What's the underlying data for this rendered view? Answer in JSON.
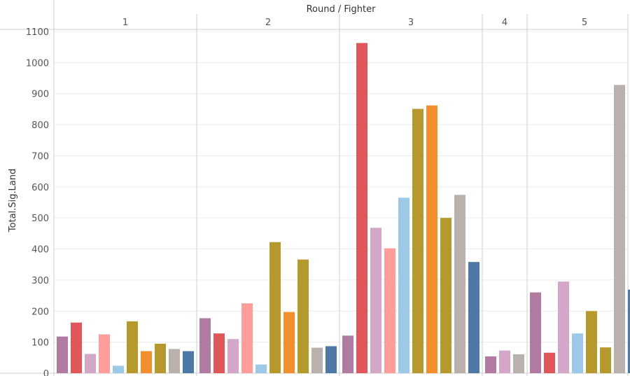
{
  "chart_data": {
    "type": "bar",
    "title": "Round / Fighter",
    "ylabel": "Total.Sig.Land",
    "xlabel": "",
    "ylim": [
      0,
      1100
    ],
    "yticks": [
      0,
      100,
      200,
      300,
      400,
      500,
      600,
      700,
      800,
      900,
      1000,
      1100
    ],
    "grid": true,
    "panels": [
      {
        "label": "1",
        "bars": [
          {
            "value": 118,
            "color": "#b07aa1"
          },
          {
            "value": 163,
            "color": "#e15759"
          },
          {
            "value": 62,
            "color": "#d4a6c8"
          },
          {
            "value": 125,
            "color": "#ff9d9a"
          },
          {
            "value": 24,
            "color": "#9dc9e8"
          },
          {
            "value": 167,
            "color": "#b6992d"
          },
          {
            "value": 71,
            "color": "#f28e2b"
          },
          {
            "value": 95,
            "color": "#b6992d"
          },
          {
            "value": 78,
            "color": "#bab0ac"
          },
          {
            "value": 71,
            "color": "#4e79a7"
          }
        ]
      },
      {
        "label": "2",
        "bars": [
          {
            "value": 177,
            "color": "#b07aa1"
          },
          {
            "value": 128,
            "color": "#e15759"
          },
          {
            "value": 110,
            "color": "#d4a6c8"
          },
          {
            "value": 225,
            "color": "#ff9d9a"
          },
          {
            "value": 28,
            "color": "#9dc9e8"
          },
          {
            "value": 422,
            "color": "#b6992d"
          },
          {
            "value": 197,
            "color": "#f28e2b"
          },
          {
            "value": 366,
            "color": "#b6992d"
          },
          {
            "value": 82,
            "color": "#bab0ac"
          },
          {
            "value": 87,
            "color": "#4e79a7"
          }
        ]
      },
      {
        "label": "3",
        "bars": [
          {
            "value": 121,
            "color": "#b07aa1"
          },
          {
            "value": 1063,
            "color": "#e15759"
          },
          {
            "value": 468,
            "color": "#d4a6c8"
          },
          {
            "value": 402,
            "color": "#ff9d9a"
          },
          {
            "value": 565,
            "color": "#9dc9e8"
          },
          {
            "value": 851,
            "color": "#b6992d"
          },
          {
            "value": 862,
            "color": "#f28e2b"
          },
          {
            "value": 500,
            "color": "#b6992d"
          },
          {
            "value": 574,
            "color": "#bab0ac"
          },
          {
            "value": 358,
            "color": "#4e79a7"
          }
        ]
      },
      {
        "label": "4",
        "bars": [
          {
            "value": 54,
            "color": "#b07aa1"
          },
          {
            "value": 73,
            "color": "#d4a6c8"
          },
          {
            "value": 61,
            "color": "#bab0ac"
          }
        ]
      },
      {
        "label": "5",
        "bars": [
          {
            "value": 260,
            "color": "#b07aa1"
          },
          {
            "value": 66,
            "color": "#e15759"
          },
          {
            "value": 295,
            "color": "#d4a6c8"
          },
          {
            "value": 128,
            "color": "#9dc9e8"
          },
          {
            "value": 200,
            "color": "#b6992d"
          },
          {
            "value": 83,
            "color": "#b6992d"
          },
          {
            "value": 928,
            "color": "#bab0ac"
          },
          {
            "value": 269,
            "color": "#4e79a7"
          }
        ]
      }
    ]
  }
}
